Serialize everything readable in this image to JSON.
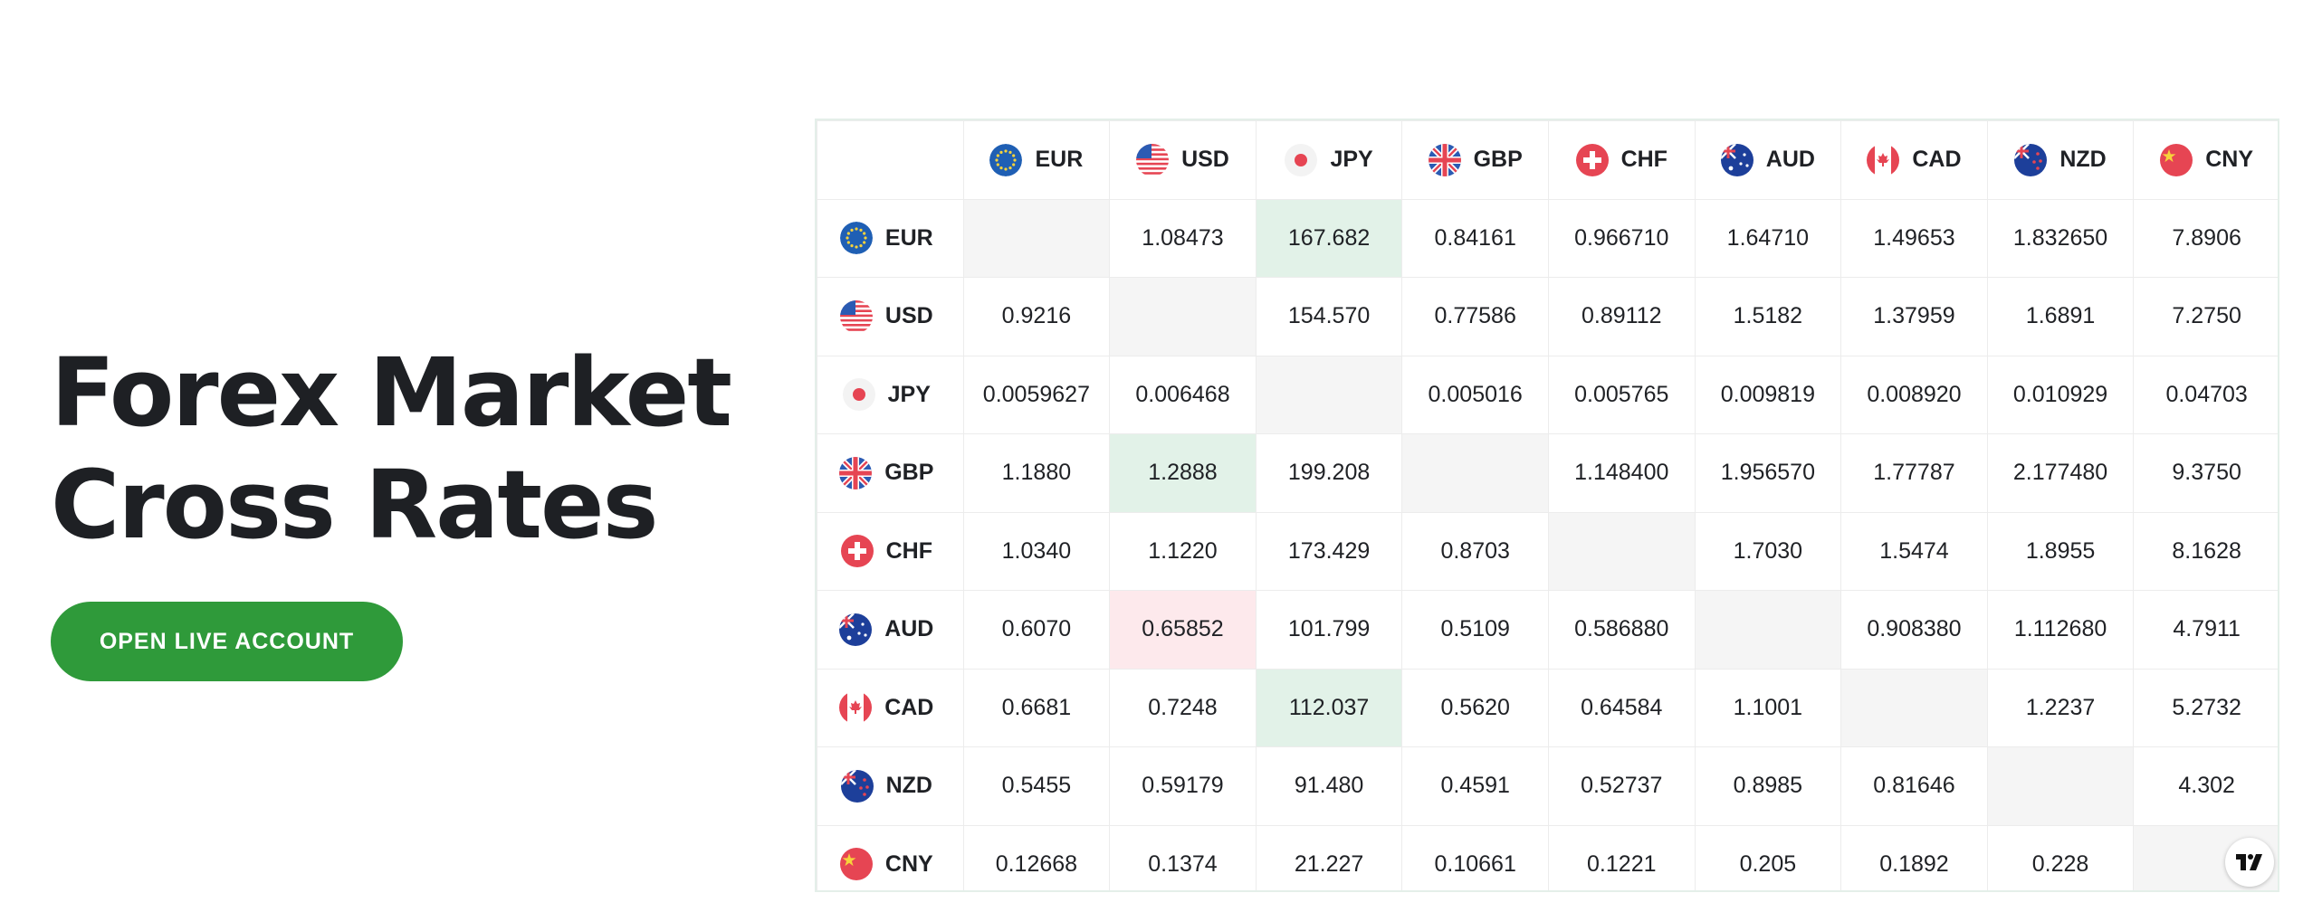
{
  "hero": {
    "title_line1": "Forex Market",
    "title_line2": "Cross Rates",
    "cta_label": "OPEN LIVE ACCOUNT"
  },
  "colors": {
    "cta": "#2f9a3a",
    "up_cell": "#e2f2e8",
    "down_cell": "#fde9ec",
    "diagonal_cell": "#f5f5f5"
  },
  "currencies": [
    "EUR",
    "USD",
    "JPY",
    "GBP",
    "CHF",
    "AUD",
    "CAD",
    "NZD",
    "CNY"
  ],
  "flag_icons": [
    "eu-flag-icon",
    "us-flag-icon",
    "jp-flag-icon",
    "gb-flag-icon",
    "ch-flag-icon",
    "au-flag-icon",
    "ca-flag-icon",
    "nz-flag-icon",
    "cn-flag-icon"
  ],
  "rates": [
    [
      "",
      "1.08473",
      "167.682",
      "0.84161",
      "0.966710",
      "1.64710",
      "1.49653",
      "1.832650",
      "7.8906"
    ],
    [
      "0.9216",
      "",
      "154.570",
      "0.77586",
      "0.89112",
      "1.5182",
      "1.37959",
      "1.6891",
      "7.2750"
    ],
    [
      "0.0059627",
      "0.006468",
      "",
      "0.005016",
      "0.005765",
      "0.009819",
      "0.008920",
      "0.010929",
      "0.04703"
    ],
    [
      "1.1880",
      "1.2888",
      "199.208",
      "",
      "1.148400",
      "1.956570",
      "1.77787",
      "2.177480",
      "9.3750"
    ],
    [
      "1.0340",
      "1.1220",
      "173.429",
      "0.8703",
      "",
      "1.7030",
      "1.5474",
      "1.8955",
      "8.1628"
    ],
    [
      "0.6070",
      "0.65852",
      "101.799",
      "0.5109",
      "0.586880",
      "",
      "0.908380",
      "1.112680",
      "4.7911"
    ],
    [
      "0.6681",
      "0.7248",
      "112.037",
      "0.5620",
      "0.64584",
      "1.1001",
      "",
      "1.2237",
      "5.2732"
    ],
    [
      "0.5455",
      "0.59179",
      "91.480",
      "0.4591",
      "0.52737",
      "0.8985",
      "0.81646",
      "",
      "4.302"
    ],
    [
      "0.12668",
      "0.1374",
      "21.227",
      "0.10661",
      "0.1221",
      "0.205",
      "0.1892",
      "0.228",
      ""
    ]
  ],
  "highlights": [
    {
      "row": 0,
      "col": 2,
      "state": "up"
    },
    {
      "row": 3,
      "col": 1,
      "state": "up"
    },
    {
      "row": 5,
      "col": 1,
      "state": "down"
    },
    {
      "row": 6,
      "col": 2,
      "state": "up"
    }
  ],
  "branding": {
    "logo_icon": "tradingview-logo-icon"
  }
}
